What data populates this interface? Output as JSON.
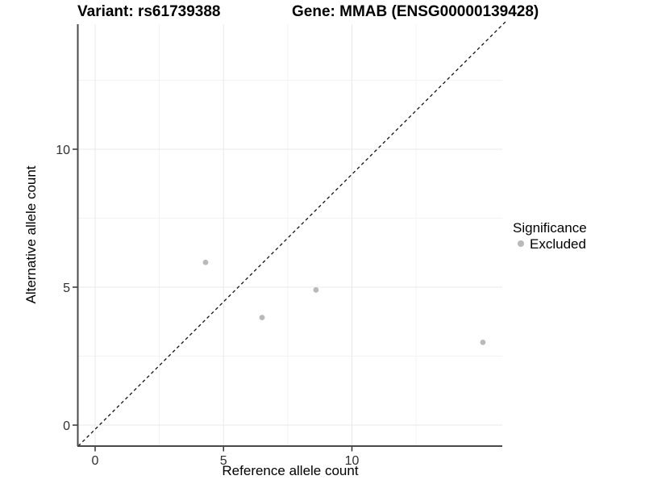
{
  "title": {
    "variant": "Variant: rs61739388",
    "gene": "Gene: MMAB (ENSG00000139428)"
  },
  "chart_data": {
    "type": "scatter",
    "title": "Variant: rs61739388 | Gene: MMAB (ENSG00000139428)",
    "xlabel": "Reference allele count",
    "ylabel": "Alternative allele count",
    "x_ticks": [
      0,
      5,
      10
    ],
    "y_ticks": [
      0,
      5,
      10
    ],
    "x_minor_ticks": [
      2.5,
      7.5,
      12.5
    ],
    "y_minor_ticks": [
      2.5,
      7.5,
      12.5
    ],
    "xlim": [
      -0.66,
      15.9
    ],
    "ylim": [
      -0.76,
      14.53
    ],
    "grid": true,
    "points": [
      {
        "x": 4.3,
        "y": 5.9,
        "significance": "Excluded"
      },
      {
        "x": 6.5,
        "y": 3.9,
        "significance": "Excluded"
      },
      {
        "x": 8.6,
        "y": 4.9,
        "significance": "Excluded"
      },
      {
        "x": 15.1,
        "y": 3.0,
        "significance": "Excluded"
      }
    ],
    "reference_line": {
      "type": "identity",
      "style": "dashed",
      "color": "#111111"
    },
    "legend": {
      "title": "Significance",
      "position": "right",
      "items": [
        {
          "label": "Excluded",
          "color": "#b9b9b9"
        }
      ]
    },
    "colors": {
      "point": "#b9b9b9",
      "grid_major": "#e8e8e8",
      "grid_minor": "#f3f3f3",
      "axis_line": "#4a4a4a",
      "tick_mark": "#333333",
      "tick_text": "#303030",
      "title_text": "#000000"
    }
  }
}
